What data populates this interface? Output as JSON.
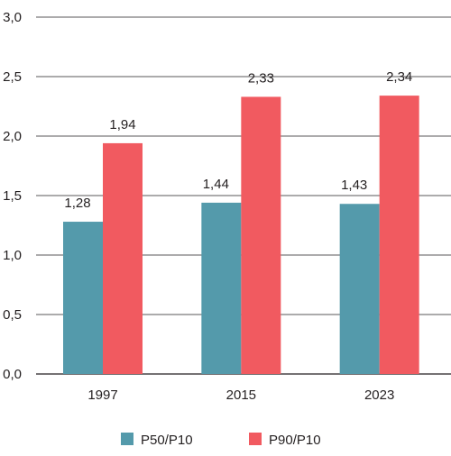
{
  "chart_data": {
    "type": "bar",
    "categories": [
      "1997",
      "2015",
      "2023"
    ],
    "series": [
      {
        "name": "P50/P10",
        "values": [
          1.28,
          1.44,
          1.43
        ],
        "labels": [
          "1,28",
          "1,44",
          "1,43"
        ],
        "color": "#549aab"
      },
      {
        "name": "P90/P10",
        "values": [
          1.94,
          2.33,
          2.34
        ],
        "labels": [
          "1,94",
          "2,33",
          "2,34"
        ],
        "color": "#f15a60"
      }
    ],
    "ylim": [
      0,
      3
    ],
    "yticks": [
      0,
      0.5,
      1,
      1.5,
      2,
      2.5,
      3
    ],
    "ytick_labels": [
      "0,0",
      "0,5",
      "1,0",
      "1,5",
      "2,0",
      "2,5",
      "3,0"
    ],
    "grid": true,
    "legend_position": "bottom",
    "grid_color": "#231f20"
  }
}
